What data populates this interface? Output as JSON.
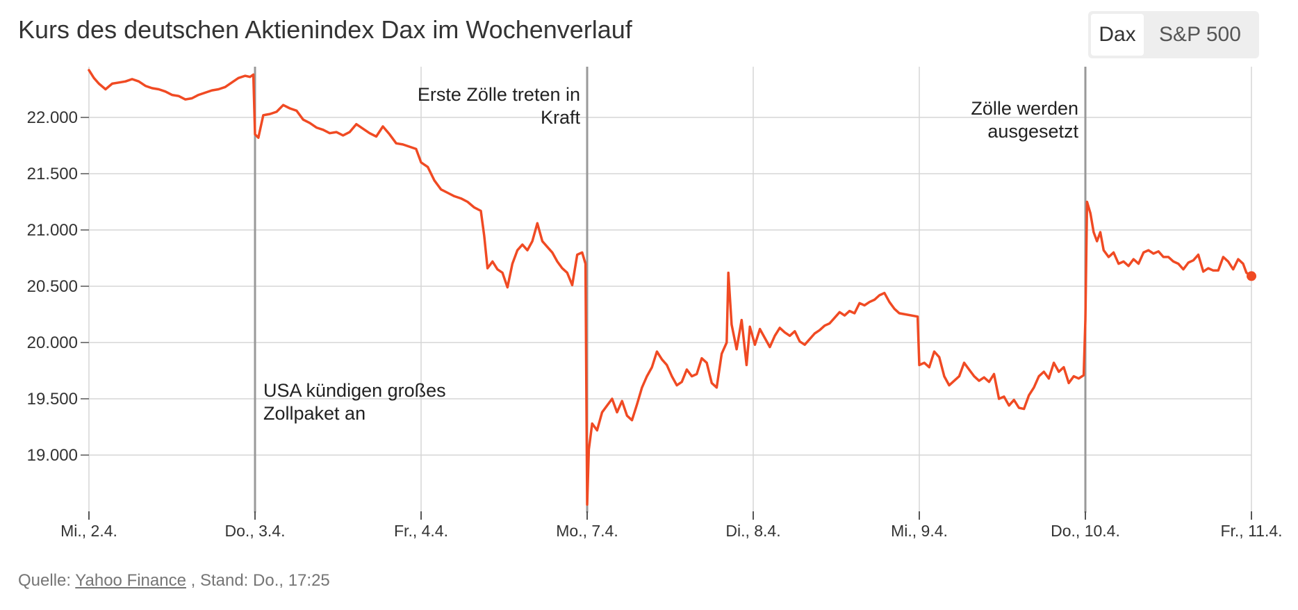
{
  "title": "Kurs des deutschen Aktienindex Dax im Wochenverlauf",
  "toggle": {
    "options": [
      "Dax",
      "S&P 500"
    ],
    "selected": "Dax"
  },
  "source": {
    "prefix": "Quelle:",
    "link_text": "Yahoo Finance",
    "suffix": ", Stand: Do., 17:25"
  },
  "colors": {
    "line": "#f04a23",
    "grid": "#d6d6d6",
    "annotation_line": "#999999",
    "text": "#333333",
    "muted": "#757575",
    "toggle_bg": "#eeeeee"
  },
  "chart_data": {
    "type": "line",
    "title": "Kurs des deutschen Aktienindex Dax im Wochenverlauf",
    "xlabel": "",
    "ylabel": "",
    "grid": true,
    "x_ticks": [
      "Mi., 2.4.",
      "Do., 3.4.",
      "Fr., 4.4.",
      "Mo., 7.4.",
      "Di., 8.4.",
      "Mi., 9.4.",
      "Do., 10.4.",
      "Fr., 11.4."
    ],
    "y_ticks": [
      19000,
      19500,
      20000,
      20500,
      21000,
      21500,
      22000
    ],
    "y_tick_labels": [
      "19.000",
      "19.500",
      "20.000",
      "20.500",
      "21.000",
      "21.500",
      "22.000"
    ],
    "ylim": [
      18500,
      22450
    ],
    "series": [
      {
        "values": [
          {
            "x": 0.0,
            "y": 22420
          },
          {
            "x": 0.03,
            "y": 22350
          },
          {
            "x": 0.06,
            "y": 22300
          },
          {
            "x": 0.1,
            "y": 22250
          },
          {
            "x": 0.14,
            "y": 22300
          },
          {
            "x": 0.18,
            "y": 22310
          },
          {
            "x": 0.22,
            "y": 22320
          },
          {
            "x": 0.26,
            "y": 22340
          },
          {
            "x": 0.3,
            "y": 22320
          },
          {
            "x": 0.34,
            "y": 22280
          },
          {
            "x": 0.38,
            "y": 22260
          },
          {
            "x": 0.42,
            "y": 22250
          },
          {
            "x": 0.46,
            "y": 22230
          },
          {
            "x": 0.5,
            "y": 22200
          },
          {
            "x": 0.54,
            "y": 22190
          },
          {
            "x": 0.58,
            "y": 22160
          },
          {
            "x": 0.62,
            "y": 22170
          },
          {
            "x": 0.66,
            "y": 22200
          },
          {
            "x": 0.7,
            "y": 22220
          },
          {
            "x": 0.74,
            "y": 22240
          },
          {
            "x": 0.78,
            "y": 22250
          },
          {
            "x": 0.82,
            "y": 22270
          },
          {
            "x": 0.86,
            "y": 22310
          },
          {
            "x": 0.9,
            "y": 22350
          },
          {
            "x": 0.94,
            "y": 22370
          },
          {
            "x": 0.97,
            "y": 22360
          },
          {
            "x": 0.99,
            "y": 22380
          },
          {
            "x": 1.0,
            "y": 21850
          },
          {
            "x": 1.02,
            "y": 21820
          },
          {
            "x": 1.05,
            "y": 22020
          },
          {
            "x": 1.09,
            "y": 22030
          },
          {
            "x": 1.13,
            "y": 22050
          },
          {
            "x": 1.17,
            "y": 22110
          },
          {
            "x": 1.21,
            "y": 22080
          },
          {
            "x": 1.25,
            "y": 22060
          },
          {
            "x": 1.29,
            "y": 21980
          },
          {
            "x": 1.33,
            "y": 21950
          },
          {
            "x": 1.37,
            "y": 21910
          },
          {
            "x": 1.41,
            "y": 21890
          },
          {
            "x": 1.45,
            "y": 21860
          },
          {
            "x": 1.49,
            "y": 21870
          },
          {
            "x": 1.53,
            "y": 21840
          },
          {
            "x": 1.57,
            "y": 21870
          },
          {
            "x": 1.61,
            "y": 21940
          },
          {
            "x": 1.65,
            "y": 21900
          },
          {
            "x": 1.69,
            "y": 21860
          },
          {
            "x": 1.73,
            "y": 21830
          },
          {
            "x": 1.77,
            "y": 21920
          },
          {
            "x": 1.81,
            "y": 21850
          },
          {
            "x": 1.85,
            "y": 21770
          },
          {
            "x": 1.89,
            "y": 21760
          },
          {
            "x": 1.93,
            "y": 21740
          },
          {
            "x": 1.97,
            "y": 21720
          },
          {
            "x": 2.0,
            "y": 21600
          },
          {
            "x": 2.04,
            "y": 21560
          },
          {
            "x": 2.08,
            "y": 21440
          },
          {
            "x": 2.12,
            "y": 21360
          },
          {
            "x": 2.16,
            "y": 21330
          },
          {
            "x": 2.2,
            "y": 21300
          },
          {
            "x": 2.24,
            "y": 21280
          },
          {
            "x": 2.28,
            "y": 21250
          },
          {
            "x": 2.32,
            "y": 21200
          },
          {
            "x": 2.36,
            "y": 21170
          },
          {
            "x": 2.38,
            "y": 20950
          },
          {
            "x": 2.4,
            "y": 20660
          },
          {
            "x": 2.43,
            "y": 20720
          },
          {
            "x": 2.46,
            "y": 20650
          },
          {
            "x": 2.49,
            "y": 20620
          },
          {
            "x": 2.52,
            "y": 20490
          },
          {
            "x": 2.55,
            "y": 20700
          },
          {
            "x": 2.58,
            "y": 20820
          },
          {
            "x": 2.61,
            "y": 20870
          },
          {
            "x": 2.64,
            "y": 20820
          },
          {
            "x": 2.67,
            "y": 20900
          },
          {
            "x": 2.7,
            "y": 21060
          },
          {
            "x": 2.73,
            "y": 20900
          },
          {
            "x": 2.76,
            "y": 20850
          },
          {
            "x": 2.79,
            "y": 20800
          },
          {
            "x": 2.82,
            "y": 20720
          },
          {
            "x": 2.85,
            "y": 20660
          },
          {
            "x": 2.88,
            "y": 20620
          },
          {
            "x": 2.91,
            "y": 20510
          },
          {
            "x": 2.94,
            "y": 20780
          },
          {
            "x": 2.97,
            "y": 20800
          },
          {
            "x": 2.99,
            "y": 20700
          },
          {
            "x": 3.0,
            "y": 18560
          },
          {
            "x": 3.01,
            "y": 19050
          },
          {
            "x": 3.03,
            "y": 19280
          },
          {
            "x": 3.06,
            "y": 19220
          },
          {
            "x": 3.09,
            "y": 19380
          },
          {
            "x": 3.12,
            "y": 19440
          },
          {
            "x": 3.15,
            "y": 19500
          },
          {
            "x": 3.18,
            "y": 19380
          },
          {
            "x": 3.21,
            "y": 19480
          },
          {
            "x": 3.24,
            "y": 19350
          },
          {
            "x": 3.27,
            "y": 19310
          },
          {
            "x": 3.3,
            "y": 19450
          },
          {
            "x": 3.33,
            "y": 19600
          },
          {
            "x": 3.36,
            "y": 19700
          },
          {
            "x": 3.39,
            "y": 19780
          },
          {
            "x": 3.42,
            "y": 19920
          },
          {
            "x": 3.45,
            "y": 19850
          },
          {
            "x": 3.48,
            "y": 19800
          },
          {
            "x": 3.51,
            "y": 19700
          },
          {
            "x": 3.54,
            "y": 19620
          },
          {
            "x": 3.57,
            "y": 19650
          },
          {
            "x": 3.6,
            "y": 19760
          },
          {
            "x": 3.63,
            "y": 19700
          },
          {
            "x": 3.66,
            "y": 19720
          },
          {
            "x": 3.69,
            "y": 19860
          },
          {
            "x": 3.72,
            "y": 19820
          },
          {
            "x": 3.75,
            "y": 19640
          },
          {
            "x": 3.78,
            "y": 19600
          },
          {
            "x": 3.81,
            "y": 19900
          },
          {
            "x": 3.84,
            "y": 20000
          },
          {
            "x": 3.85,
            "y": 20620
          },
          {
            "x": 3.87,
            "y": 20160
          },
          {
            "x": 3.9,
            "y": 19940
          },
          {
            "x": 3.93,
            "y": 20200
          },
          {
            "x": 3.96,
            "y": 19800
          },
          {
            "x": 3.98,
            "y": 20140
          },
          {
            "x": 4.01,
            "y": 19980
          },
          {
            "x": 4.04,
            "y": 20120
          },
          {
            "x": 4.07,
            "y": 20040
          },
          {
            "x": 4.1,
            "y": 19960
          },
          {
            "x": 4.13,
            "y": 20060
          },
          {
            "x": 4.16,
            "y": 20130
          },
          {
            "x": 4.19,
            "y": 20090
          },
          {
            "x": 4.22,
            "y": 20060
          },
          {
            "x": 4.25,
            "y": 20100
          },
          {
            "x": 4.28,
            "y": 20010
          },
          {
            "x": 4.31,
            "y": 19980
          },
          {
            "x": 4.34,
            "y": 20030
          },
          {
            "x": 4.37,
            "y": 20080
          },
          {
            "x": 4.4,
            "y": 20110
          },
          {
            "x": 4.43,
            "y": 20150
          },
          {
            "x": 4.46,
            "y": 20170
          },
          {
            "x": 4.49,
            "y": 20220
          },
          {
            "x": 4.52,
            "y": 20270
          },
          {
            "x": 4.55,
            "y": 20240
          },
          {
            "x": 4.58,
            "y": 20280
          },
          {
            "x": 4.61,
            "y": 20260
          },
          {
            "x": 4.64,
            "y": 20350
          },
          {
            "x": 4.67,
            "y": 20330
          },
          {
            "x": 4.7,
            "y": 20360
          },
          {
            "x": 4.73,
            "y": 20380
          },
          {
            "x": 4.76,
            "y": 20420
          },
          {
            "x": 4.79,
            "y": 20440
          },
          {
            "x": 4.82,
            "y": 20360
          },
          {
            "x": 4.85,
            "y": 20300
          },
          {
            "x": 4.88,
            "y": 20260
          },
          {
            "x": 4.99,
            "y": 20230
          },
          {
            "x": 5.0,
            "y": 19800
          },
          {
            "x": 5.03,
            "y": 19820
          },
          {
            "x": 5.06,
            "y": 19780
          },
          {
            "x": 5.09,
            "y": 19920
          },
          {
            "x": 5.12,
            "y": 19870
          },
          {
            "x": 5.15,
            "y": 19700
          },
          {
            "x": 5.18,
            "y": 19620
          },
          {
            "x": 5.21,
            "y": 19660
          },
          {
            "x": 5.24,
            "y": 19700
          },
          {
            "x": 5.27,
            "y": 19820
          },
          {
            "x": 5.3,
            "y": 19760
          },
          {
            "x": 5.33,
            "y": 19700
          },
          {
            "x": 5.36,
            "y": 19660
          },
          {
            "x": 5.39,
            "y": 19690
          },
          {
            "x": 5.42,
            "y": 19650
          },
          {
            "x": 5.45,
            "y": 19720
          },
          {
            "x": 5.48,
            "y": 19500
          },
          {
            "x": 5.51,
            "y": 19520
          },
          {
            "x": 5.54,
            "y": 19440
          },
          {
            "x": 5.57,
            "y": 19490
          },
          {
            "x": 5.6,
            "y": 19420
          },
          {
            "x": 5.63,
            "y": 19410
          },
          {
            "x": 5.66,
            "y": 19530
          },
          {
            "x": 5.69,
            "y": 19600
          },
          {
            "x": 5.72,
            "y": 19700
          },
          {
            "x": 5.75,
            "y": 19740
          },
          {
            "x": 5.78,
            "y": 19680
          },
          {
            "x": 5.81,
            "y": 19820
          },
          {
            "x": 5.84,
            "y": 19740
          },
          {
            "x": 5.87,
            "y": 19780
          },
          {
            "x": 5.9,
            "y": 19640
          },
          {
            "x": 5.93,
            "y": 19700
          },
          {
            "x": 5.96,
            "y": 19680
          },
          {
            "x": 5.99,
            "y": 19710
          },
          {
            "x": 6.0,
            "y": 20200
          },
          {
            "x": 6.01,
            "y": 21250
          },
          {
            "x": 6.03,
            "y": 21150
          },
          {
            "x": 6.05,
            "y": 20980
          },
          {
            "x": 6.07,
            "y": 20900
          },
          {
            "x": 6.09,
            "y": 20980
          },
          {
            "x": 6.11,
            "y": 20820
          },
          {
            "x": 6.14,
            "y": 20760
          },
          {
            "x": 6.17,
            "y": 20800
          },
          {
            "x": 6.2,
            "y": 20700
          },
          {
            "x": 6.23,
            "y": 20720
          },
          {
            "x": 6.26,
            "y": 20680
          },
          {
            "x": 6.29,
            "y": 20740
          },
          {
            "x": 6.32,
            "y": 20700
          },
          {
            "x": 6.35,
            "y": 20800
          },
          {
            "x": 6.38,
            "y": 20820
          },
          {
            "x": 6.41,
            "y": 20790
          },
          {
            "x": 6.44,
            "y": 20810
          },
          {
            "x": 6.47,
            "y": 20760
          },
          {
            "x": 6.5,
            "y": 20760
          },
          {
            "x": 6.53,
            "y": 20720
          },
          {
            "x": 6.56,
            "y": 20700
          },
          {
            "x": 6.59,
            "y": 20650
          },
          {
            "x": 6.62,
            "y": 20710
          },
          {
            "x": 6.65,
            "y": 20730
          },
          {
            "x": 6.68,
            "y": 20780
          },
          {
            "x": 6.71,
            "y": 20630
          },
          {
            "x": 6.74,
            "y": 20660
          },
          {
            "x": 6.77,
            "y": 20640
          },
          {
            "x": 6.8,
            "y": 20640
          },
          {
            "x": 6.83,
            "y": 20760
          },
          {
            "x": 6.86,
            "y": 20720
          },
          {
            "x": 6.89,
            "y": 20650
          },
          {
            "x": 6.92,
            "y": 20740
          },
          {
            "x": 6.95,
            "y": 20700
          },
          {
            "x": 6.97,
            "y": 20620
          },
          {
            "x": 7.0,
            "y": 20590
          }
        ]
      }
    ],
    "annotations": [
      {
        "x": 1,
        "text": [
          "USA kündigen großes",
          "Zollpaket an"
        ],
        "position": "right-below"
      },
      {
        "x": 3,
        "text": [
          "Erste Zölle treten in",
          "Kraft"
        ],
        "position": "left-above"
      },
      {
        "x": 6,
        "text": [
          "Zölle werden",
          "ausgesetzt"
        ],
        "position": "left-above"
      }
    ]
  }
}
